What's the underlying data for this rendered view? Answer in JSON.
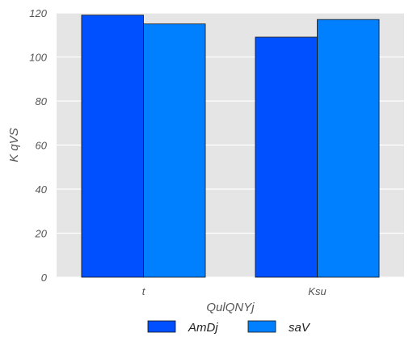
{
  "chart_data": {
    "type": "bar",
    "categories": [
      "t",
      "Ksu"
    ],
    "series": [
      {
        "name": "AmDj",
        "values": [
          119,
          109
        ],
        "color": "#0050ff"
      },
      {
        "name": "saV",
        "values": [
          115,
          117
        ],
        "color": "#0080ff"
      }
    ],
    "title": "",
    "xlabel": "QulQNYj",
    "ylabel": "K qVS",
    "ylim": [
      0,
      120
    ],
    "yticks": [
      0,
      20,
      40,
      60,
      80,
      100,
      120
    ],
    "grid": true,
    "legend": "bottom-center",
    "background": "#e5e5e5"
  }
}
